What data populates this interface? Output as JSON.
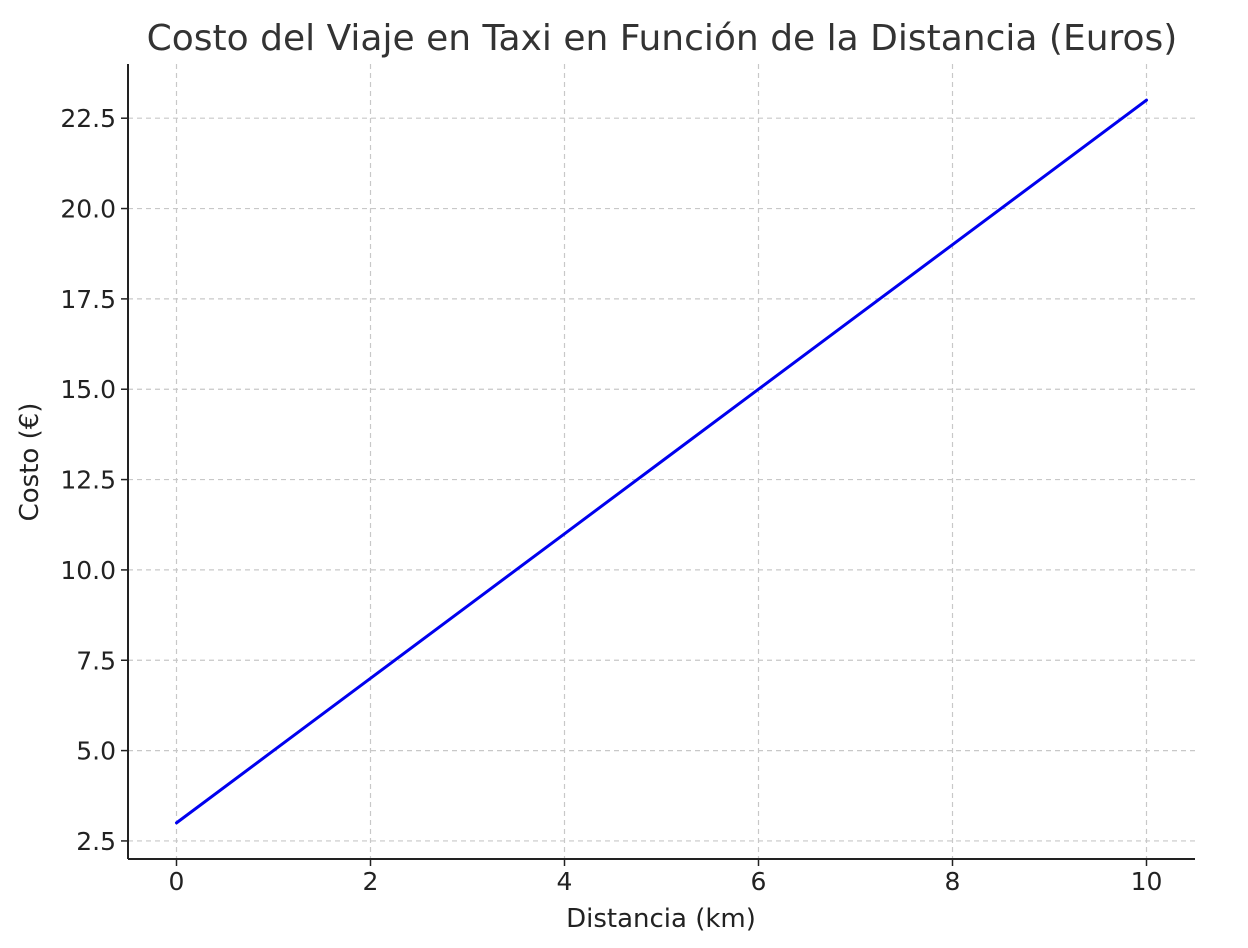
{
  "chart_data": {
    "type": "line",
    "title": "Costo del Viaje en Taxi en Función de la Distancia (Euros)",
    "xlabel": "Distancia (km)",
    "ylabel": "Costo (€)",
    "xlim": [
      -0.5,
      10.5
    ],
    "ylim": [
      2.0,
      24.0
    ],
    "xticks": [
      0,
      2,
      4,
      6,
      8,
      10
    ],
    "xtick_labels": [
      "0",
      "2",
      "4",
      "6",
      "8",
      "10"
    ],
    "yticks": [
      2.5,
      5.0,
      7.5,
      10.0,
      12.5,
      15.0,
      17.5,
      20.0,
      22.5
    ],
    "ytick_labels": [
      "2.5",
      "5.0",
      "7.5",
      "10.0",
      "12.5",
      "15.0",
      "17.5",
      "20.0",
      "22.5"
    ],
    "grid": true,
    "series": [
      {
        "color": "#0000ee",
        "x": [
          0,
          1,
          2,
          3,
          4,
          5,
          6,
          7,
          8,
          9,
          10
        ],
        "y": [
          3,
          5,
          7,
          9,
          11,
          13,
          15,
          17,
          19,
          21,
          23
        ]
      }
    ]
  }
}
